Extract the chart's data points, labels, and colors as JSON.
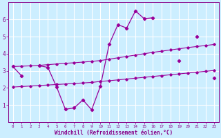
{
  "xlabel": "Windchill (Refroidissement éolien,°C)",
  "background_color": "#cceeff",
  "grid_color": "#ffffff",
  "line_color": "#990099",
  "x_hours": [
    0,
    1,
    2,
    3,
    4,
    5,
    6,
    7,
    8,
    9,
    10,
    11,
    12,
    13,
    14,
    15,
    16,
    17,
    18,
    19,
    20,
    21,
    22,
    23
  ],
  "series1": [
    3.25,
    2.7,
    null,
    3.3,
    3.2,
    2.05,
    0.75,
    0.83,
    1.3,
    0.72,
    2.1,
    4.55,
    5.7,
    5.5,
    6.5,
    6.05,
    6.1,
    null,
    null,
    3.6,
    null,
    5.0,
    null,
    2.6
  ],
  "series2": [
    3.25,
    3.27,
    3.29,
    3.32,
    3.36,
    3.4,
    3.44,
    3.47,
    3.51,
    3.55,
    3.6,
    3.68,
    3.76,
    3.84,
    3.92,
    4.0,
    4.08,
    4.15,
    4.22,
    4.29,
    4.36,
    4.42,
    4.48,
    4.54
  ],
  "series3": [
    2.05,
    2.08,
    2.11,
    2.14,
    2.17,
    2.2,
    2.23,
    2.26,
    2.29,
    2.32,
    2.38,
    2.42,
    2.47,
    2.52,
    2.57,
    2.62,
    2.67,
    2.72,
    2.77,
    2.82,
    2.87,
    2.92,
    2.97,
    3.02
  ],
  "ylim": [
    0,
    7
  ],
  "xlim": [
    -0.5,
    23.5
  ],
  "yticks": [
    1,
    2,
    3,
    4,
    5,
    6
  ],
  "xticks": [
    0,
    1,
    2,
    3,
    4,
    5,
    6,
    7,
    8,
    9,
    10,
    11,
    12,
    13,
    14,
    15,
    16,
    17,
    18,
    19,
    20,
    21,
    22,
    23
  ]
}
